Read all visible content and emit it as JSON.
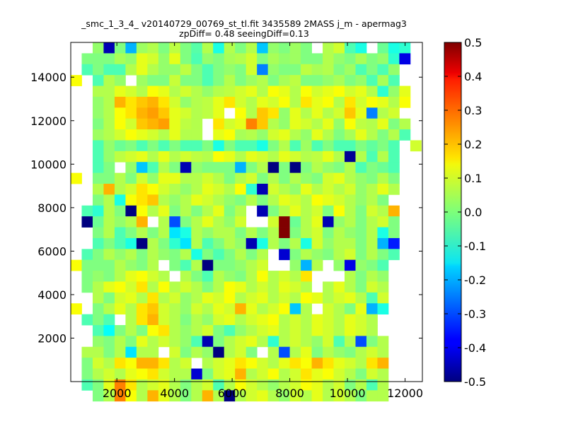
{
  "chart_data": {
    "type": "heatmap",
    "title_line1": "_smc_1_3_4_ v20140729_00769_st_tl.fit 3435589 2MASS j_m - apermag3",
    "title_line2": "zpDiff= 0.48 seeingDiff=0.13",
    "xlabel": "",
    "ylabel": "",
    "xlim": [
      400,
      12600
    ],
    "ylim": [
      0,
      15600
    ],
    "xticks": [
      2000,
      4000,
      6000,
      8000,
      10000,
      12000
    ],
    "yticks": [
      2000,
      4000,
      6000,
      8000,
      10000,
      12000,
      14000
    ],
    "colorbar": {
      "colormap": "jet",
      "vmin": -0.5,
      "vmax": 0.5,
      "ticks": [
        "-0.5",
        "-0.4",
        "-0.3",
        "-0.2",
        "-0.1",
        "0.0",
        "0.1",
        "0.2",
        "0.3",
        "0.4",
        "0.5"
      ]
    },
    "grid": {
      "x0": 400,
      "y_top": 15600,
      "cell_w": 380,
      "cell_h": 500,
      "legend": "rows listed top (y=15600) to bottom; value in data units, null = empty",
      "rows": [
        [
          null,
          null,
          0.02,
          -0.45,
          0.0,
          -0.2,
          0.03,
          0.05,
          0.0,
          0.06,
          0.0,
          -0.04,
          0.05,
          -0.1,
          0.05,
          0.0,
          0.05,
          -0.18,
          0.02,
          0.0,
          0.03,
          0.0,
          null,
          0.05,
          0.08,
          -0.05,
          -0.1,
          null,
          -0.02,
          -0.1,
          -0.08,
          null,
          null,
          null,
          null
        ],
        [
          null,
          0.0,
          0.0,
          0.0,
          0.04,
          0.02,
          0.1,
          0.08,
          0.02,
          0.1,
          0.0,
          -0.05,
          0.02,
          0.0,
          0.04,
          0.05,
          0.08,
          0.0,
          0.04,
          0.02,
          0.03,
          0.0,
          0.0,
          0.05,
          0.02,
          0.0,
          0.04,
          0.0,
          0.02,
          -0.08,
          -0.4,
          null,
          null,
          null,
          null
        ],
        [
          null,
          -0.05,
          0.0,
          -0.05,
          -0.05,
          0.05,
          0.1,
          0.05,
          0.02,
          0.02,
          0.06,
          0.0,
          -0.05,
          0.0,
          0.02,
          0.0,
          0.08,
          -0.25,
          0.02,
          0.0,
          0.0,
          0.06,
          0.04,
          0.05,
          0.0,
          0.03,
          -0.05,
          0.0,
          -0.05,
          0.02,
          null,
          null,
          null,
          null,
          null
        ],
        [
          0.12,
          null,
          -0.05,
          0.05,
          0.02,
          null,
          0.03,
          0.0,
          0.0,
          0.07,
          0.0,
          0.0,
          -0.05,
          0.0,
          0.05,
          0.0,
          0.03,
          0.05,
          0.0,
          0.04,
          0.06,
          0.0,
          0.0,
          0.02,
          0.04,
          0.0,
          0.02,
          -0.05,
          0.04,
          -0.05,
          null,
          null,
          null,
          null,
          null
        ],
        [
          null,
          null,
          0.05,
          0.05,
          0.1,
          0.08,
          0.05,
          0.12,
          0.1,
          0.05,
          0.08,
          0.05,
          0.02,
          0.05,
          0.06,
          0.08,
          0.1,
          0.05,
          0.12,
          0.1,
          0.05,
          0.12,
          0.08,
          0.1,
          0.12,
          0.08,
          0.1,
          0.05,
          -0.08,
          0.02,
          0.1,
          null,
          null,
          null,
          null
        ],
        [
          null,
          null,
          0.02,
          0.05,
          0.2,
          0.15,
          0.18,
          0.2,
          0.15,
          0.08,
          0.02,
          0.05,
          0.06,
          0.1,
          0.15,
          0.08,
          0.05,
          0.1,
          0.08,
          0.12,
          0.05,
          0.15,
          0.1,
          0.12,
          0.05,
          0.15,
          0.08,
          0.12,
          0.1,
          0.05,
          0.12,
          null,
          null,
          null,
          null
        ],
        [
          null,
          null,
          0.02,
          0.05,
          0.12,
          0.15,
          0.2,
          0.22,
          0.18,
          0.1,
          0.08,
          0.05,
          0.06,
          0.1,
          null,
          0.12,
          0.05,
          0.18,
          0.15,
          0.02,
          0.1,
          0.05,
          0.1,
          0.05,
          0.08,
          0.18,
          0.1,
          -0.25,
          0.05,
          0.08,
          null,
          null,
          null,
          null,
          null
        ],
        [
          null,
          null,
          0.0,
          0.05,
          0.12,
          0.08,
          0.18,
          0.2,
          0.22,
          0.1,
          0.06,
          0.05,
          null,
          0.15,
          0.08,
          0.1,
          0.25,
          0.18,
          0.05,
          0.02,
          0.1,
          0.08,
          0.05,
          0.1,
          0.02,
          0.12,
          0.06,
          0.05,
          0.1,
          0.0,
          0.05,
          null,
          null,
          null,
          null
        ],
        [
          null,
          null,
          0.03,
          0.05,
          0.08,
          0.12,
          0.1,
          0.08,
          0.05,
          0.1,
          0.05,
          0.05,
          null,
          0.1,
          0.12,
          0.04,
          0.05,
          0.02,
          0.08,
          0.1,
          0.05,
          0.02,
          0.1,
          0.05,
          0.0,
          0.04,
          0.1,
          0.05,
          0.0,
          0.05,
          -0.05,
          null,
          null,
          null,
          null
        ],
        [
          null,
          null,
          -0.05,
          0.02,
          -0.02,
          0.0,
          -0.05,
          0.0,
          -0.05,
          0.0,
          -0.05,
          -0.05,
          0.0,
          -0.1,
          0.0,
          -0.05,
          -0.05,
          -0.1,
          0.0,
          0.05,
          -0.05,
          0.03,
          -0.05,
          0.0,
          -0.05,
          -0.05,
          0.0,
          -0.03,
          0.0,
          -0.05,
          null,
          0.08,
          null,
          null,
          null
        ],
        [
          null,
          null,
          -0.05,
          0.02,
          0.06,
          0.08,
          0.1,
          0.05,
          0.1,
          0.05,
          0.08,
          0.06,
          0.05,
          0.12,
          0.1,
          0.05,
          0.1,
          0.08,
          0.05,
          0.1,
          0.08,
          0.05,
          0.06,
          0.1,
          0.05,
          -0.48,
          0.05,
          -0.05,
          0.05,
          -0.05,
          null,
          null,
          null,
          null,
          null
        ],
        [
          null,
          null,
          -0.05,
          0.0,
          null,
          0.02,
          -0.18,
          -0.05,
          0.05,
          0.0,
          -0.45,
          0.02,
          0.0,
          0.0,
          0.0,
          -0.2,
          0.0,
          0.05,
          -0.5,
          0.0,
          -0.5,
          0.0,
          0.05,
          0.02,
          0.0,
          0.05,
          -0.05,
          0.0,
          -0.02,
          -0.05,
          null,
          null,
          null,
          null,
          null
        ],
        [
          0.12,
          null,
          0.0,
          0.0,
          0.05,
          0.0,
          0.08,
          0.02,
          0.1,
          0.1,
          0.05,
          0.05,
          0.08,
          0.05,
          0.0,
          0.05,
          0.08,
          0.0,
          0.05,
          0.0,
          0.05,
          0.02,
          0.0,
          0.08,
          0.1,
          0.05,
          0.02,
          0.0,
          0.05,
          0.0,
          null,
          null,
          null,
          null,
          null
        ],
        [
          null,
          null,
          0.05,
          0.2,
          0.05,
          0.08,
          0.15,
          0.12,
          0.08,
          0.05,
          0.02,
          0.05,
          0.1,
          0.08,
          0.05,
          0.12,
          -0.08,
          -0.45,
          0.08,
          0.05,
          0.02,
          0.1,
          0.05,
          0.08,
          0.05,
          0.08,
          0.02,
          0.05,
          0.1,
          0.05,
          null,
          null,
          null,
          null,
          null
        ],
        [
          null,
          null,
          0.0,
          0.05,
          -0.1,
          0.12,
          0.15,
          0.18,
          0.05,
          0.02,
          0.05,
          0.1,
          0.08,
          0.05,
          0.02,
          0.0,
          0.05,
          0.0,
          0.05,
          0.1,
          0.08,
          0.05,
          0.12,
          0.1,
          0.08,
          0.05,
          0.02,
          0.05,
          0.0,
          null,
          null,
          null,
          null,
          null,
          null
        ],
        [
          null,
          -0.05,
          -0.08,
          0.05,
          0.0,
          -0.5,
          0.12,
          0.05,
          0.1,
          0.0,
          0.05,
          0.0,
          0.05,
          0.1,
          0.0,
          0.05,
          null,
          -0.45,
          0.0,
          0.05,
          0.1,
          0.05,
          0.08,
          0.0,
          0.12,
          0.05,
          0.0,
          0.08,
          0.05,
          0.2,
          null,
          null,
          null,
          null,
          null
        ],
        [
          null,
          -0.5,
          -0.02,
          0.05,
          0.02,
          0.05,
          0.2,
          null,
          0.05,
          -0.3,
          0.0,
          0.05,
          0.1,
          0.05,
          0.02,
          0.08,
          null,
          null,
          0.08,
          0.5,
          -0.02,
          0.05,
          0.1,
          -0.45,
          0.02,
          0.05,
          0.0,
          0.05,
          0.08,
          0.0,
          null,
          null,
          null,
          null,
          null
        ],
        [
          null,
          null,
          0.0,
          0.05,
          -0.05,
          0.0,
          0.05,
          0.0,
          0.05,
          -0.15,
          -0.1,
          0.05,
          0.02,
          0.05,
          0.05,
          0.0,
          0.05,
          0.0,
          0.05,
          0.5,
          0.0,
          0.05,
          0.08,
          0.0,
          0.05,
          0.02,
          0.0,
          0.05,
          -0.1,
          0.0,
          null,
          null,
          null,
          null,
          null
        ],
        [
          null,
          null,
          -0.05,
          0.0,
          -0.05,
          -0.1,
          -0.5,
          0.05,
          0.0,
          -0.08,
          -0.15,
          0.05,
          -0.05,
          0.0,
          0.05,
          0.02,
          -0.45,
          -0.1,
          0.05,
          0.0,
          0.05,
          -0.1,
          0.08,
          0.02,
          0.05,
          0.05,
          0.0,
          0.05,
          -0.2,
          -0.35,
          null,
          null,
          null,
          null,
          null
        ],
        [
          null,
          -0.05,
          0.0,
          0.05,
          0.02,
          0.05,
          0.0,
          0.05,
          0.02,
          0.0,
          0.05,
          -0.1,
          0.0,
          -0.05,
          0.0,
          0.05,
          0.0,
          0.05,
          null,
          -0.42,
          0.0,
          0.05,
          0.02,
          0.0,
          0.05,
          0.08,
          0.0,
          0.05,
          0.0,
          -0.05,
          null,
          null,
          null,
          null,
          null
        ],
        [
          0.12,
          0.0,
          0.0,
          0.0,
          0.05,
          0.02,
          0.0,
          0.05,
          null,
          0.0,
          -0.05,
          0.05,
          -0.5,
          0.0,
          0.0,
          0.02,
          0.05,
          0.08,
          null,
          null,
          0.02,
          -0.2,
          0.05,
          null,
          0.02,
          -0.4,
          0.02,
          0.0,
          -0.05,
          null,
          null,
          null,
          null,
          null,
          null
        ],
        [
          null,
          0.0,
          0.02,
          0.0,
          0.05,
          0.1,
          0.12,
          0.08,
          0.05,
          null,
          0.05,
          0.0,
          -0.05,
          0.05,
          0.02,
          0.0,
          0.05,
          0.12,
          0.05,
          0.08,
          0.05,
          0.15,
          null,
          null,
          null,
          0.05,
          0.0,
          0.05,
          0.02,
          null,
          null,
          null,
          null,
          null,
          null
        ],
        [
          null,
          0.0,
          0.05,
          0.1,
          0.12,
          0.08,
          0.15,
          0.05,
          0.12,
          0.05,
          0.08,
          0.05,
          0.0,
          0.05,
          0.12,
          0.1,
          0.05,
          0.08,
          0.05,
          0.1,
          0.08,
          0.05,
          null,
          0.05,
          0.1,
          0.05,
          0.0,
          0.08,
          0.05,
          null,
          null,
          null,
          null,
          null,
          null
        ],
        [
          null,
          null,
          0.05,
          0.0,
          0.08,
          0.1,
          0.05,
          0.15,
          0.05,
          0.08,
          0.02,
          0.05,
          0.1,
          0.08,
          0.12,
          0.05,
          0.08,
          0.1,
          0.05,
          0.08,
          0.05,
          0.12,
          0.1,
          0.05,
          0.08,
          0.1,
          0.05,
          -0.05,
          0.08,
          null,
          null,
          null,
          null,
          null,
          null
        ],
        [
          0.12,
          null,
          0.0,
          0.05,
          0.1,
          0.05,
          0.15,
          0.18,
          0.08,
          0.05,
          0.02,
          0.08,
          0.05,
          0.1,
          0.08,
          0.2,
          0.1,
          0.05,
          0.08,
          0.12,
          -0.18,
          0.05,
          null,
          0.08,
          0.05,
          0.0,
          0.1,
          -0.2,
          -0.1,
          null,
          null,
          null,
          null,
          null,
          null
        ],
        [
          null,
          -0.05,
          0.0,
          -0.05,
          null,
          0.05,
          0.15,
          0.2,
          0.08,
          0.05,
          0.0,
          0.05,
          0.02,
          0.08,
          0.1,
          0.05,
          0.08,
          0.1,
          0.12,
          0.05,
          0.08,
          0.05,
          0.1,
          0.08,
          0.05,
          0.1,
          0.08,
          0.05,
          null,
          null,
          null,
          null,
          null,
          null,
          null
        ],
        [
          null,
          null,
          -0.05,
          -0.12,
          0.0,
          0.05,
          0.0,
          0.12,
          0.15,
          0.05,
          0.02,
          0.05,
          0.08,
          0.0,
          -0.05,
          0.02,
          0.05,
          0.08,
          0.1,
          0.05,
          0.08,
          0.05,
          0.1,
          0.08,
          0.05,
          0.1,
          0.08,
          0.05,
          null,
          null,
          null,
          null,
          null,
          null,
          null
        ],
        [
          null,
          null,
          0.02,
          0.0,
          0.05,
          0.0,
          0.1,
          0.05,
          0.08,
          0.05,
          0.02,
          -0.05,
          -0.45,
          0.0,
          0.05,
          0.08,
          0.1,
          0.05,
          -0.08,
          0.05,
          0.08,
          0.05,
          0.02,
          0.08,
          -0.05,
          0.05,
          -0.3,
          0.0,
          0.05,
          null,
          null,
          null,
          null,
          null,
          null
        ],
        [
          null,
          0.05,
          0.05,
          0.0,
          0.05,
          -0.15,
          0.05,
          0.05,
          null,
          0.08,
          0.0,
          0.05,
          0.02,
          -0.5,
          0.05,
          0.08,
          0.0,
          null,
          0.05,
          -0.3,
          0.05,
          0.1,
          0.0,
          0.05,
          0.02,
          0.0,
          0.05,
          0.08,
          0.05,
          null,
          null,
          null,
          null,
          null,
          null
        ],
        [
          null,
          0.0,
          0.08,
          0.05,
          0.15,
          0.12,
          0.2,
          0.2,
          0.15,
          0.05,
          0.08,
          null,
          0.05,
          0.08,
          0.1,
          0.15,
          0.12,
          0.08,
          0.05,
          0.1,
          0.15,
          0.12,
          0.2,
          0.15,
          0.1,
          0.08,
          0.05,
          0.15,
          0.2,
          null,
          null,
          null,
          null,
          null,
          null
        ],
        [
          null,
          0.0,
          0.05,
          0.08,
          0.05,
          0.1,
          0.12,
          0.15,
          0.08,
          0.05,
          0.05,
          -0.42,
          0.0,
          0.08,
          0.1,
          0.2,
          0.05,
          0.08,
          0.12,
          0.05,
          0.08,
          0.15,
          0.1,
          0.12,
          0.08,
          0.05,
          0.0,
          0.08,
          0.05,
          null,
          null,
          null,
          null,
          null,
          null
        ],
        [
          null,
          -0.05,
          0.0,
          0.1,
          0.25,
          0.15,
          0.05,
          0.08,
          0.1,
          0.05,
          0.0,
          0.05,
          0.08,
          -0.05,
          0.05,
          0.12,
          0.08,
          0.05,
          0.02,
          0.05,
          0.08,
          0.12,
          0.1,
          0.05,
          0.08,
          0.0,
          0.05,
          -0.05,
          0.05,
          null,
          null,
          null,
          null,
          null,
          null
        ],
        [
          null,
          null,
          0.0,
          0.05,
          0.25,
          0.12,
          0.05,
          0.2,
          0.1,
          0.05,
          0.0,
          0.05,
          0.2,
          0.05,
          -0.5,
          0.05,
          0.08,
          0.1,
          0.05,
          0.02,
          0.08,
          0.05,
          0.1,
          0.05,
          0.08,
          0.05,
          0.0,
          0.05,
          0.05,
          null,
          null,
          null,
          null,
          null,
          null
        ]
      ]
    }
  }
}
